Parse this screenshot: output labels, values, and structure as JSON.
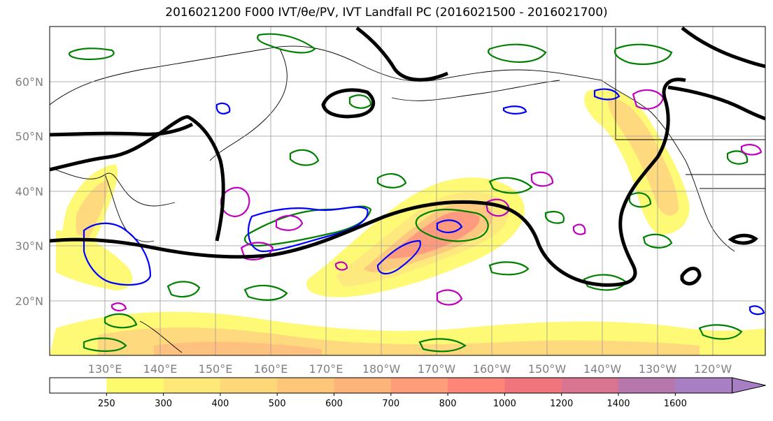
{
  "title": "2016021200 F000 IVT/θe/PV, IVT Landfall PC (2016021500 - 2016021700)",
  "map": {
    "lat_labels": [
      "60°N",
      "50°N",
      "40°N",
      "30°N",
      "20°N"
    ],
    "lon_labels": [
      "130°E",
      "140°E",
      "150°E",
      "160°E",
      "170°E",
      "180°W",
      "170°W",
      "160°W",
      "150°W",
      "140°W",
      "130°W",
      "120°W"
    ]
  },
  "colorbar": {
    "ticks": [
      "250",
      "300",
      "400",
      "500",
      "600",
      "700",
      "800",
      "1000",
      "1200",
      "1400",
      "1600"
    ],
    "colors": [
      "#ffffff",
      "#fefa6e",
      "#fde878",
      "#fed778",
      "#fdc679",
      "#fdb47a",
      "#fe9d7a",
      "#fd8679",
      "#f1757d",
      "#d97591",
      "#b776ac",
      "#a87ec5"
    ]
  },
  "contour_colors": {
    "ivt_pc": "#000000",
    "theta_e": "#008000",
    "pv_positive": "#0000ff",
    "pv_negative": "#c000c0"
  }
}
